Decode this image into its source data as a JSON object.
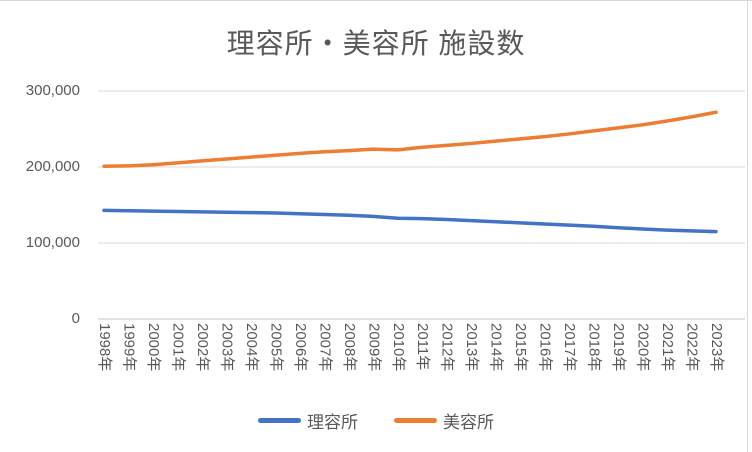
{
  "chart_data": {
    "type": "line",
    "title": "理容所・美容所 施設数",
    "categories": [
      "1998年",
      "1999年",
      "2000年",
      "2001年",
      "2002年",
      "2003年",
      "2004年",
      "2005年",
      "2006年",
      "2007年",
      "2008年",
      "2009年",
      "2010年",
      "2011年",
      "2012年",
      "2013年",
      "2014年",
      "2015年",
      "2016年",
      "2017年",
      "2018年",
      "2019年",
      "2020年",
      "2021年",
      "2022年",
      "2023年"
    ],
    "series": [
      {
        "name": "理容所",
        "color": "#4472C4",
        "values": [
          143000,
          142500,
          142000,
          141500,
          141000,
          140500,
          140000,
          139500,
          138500,
          137500,
          136500,
          135000,
          132500,
          132000,
          131000,
          129500,
          128000,
          126500,
          125000,
          123500,
          122000,
          120000,
          118500,
          117000,
          116000,
          115000
        ]
      },
      {
        "name": "美容所",
        "color": "#ED7D31",
        "values": [
          201000,
          201500,
          203000,
          205500,
          208000,
          210500,
          213000,
          215500,
          218000,
          220000,
          221500,
          223500,
          222500,
          226000,
          228500,
          231000,
          234000,
          237000,
          240000,
          243500,
          247500,
          251500,
          255500,
          260500,
          266000,
          272000
        ]
      }
    ],
    "xlabel": "",
    "ylabel": "",
    "ylim": [
      0,
      320000
    ],
    "y_ticks": [
      0,
      100000,
      200000,
      300000
    ],
    "y_tick_labels": [
      "0",
      "100,000",
      "200,000",
      "300,000"
    ],
    "grid": true,
    "legend_position": "bottom",
    "x_label_rotation": 90,
    "gridline_color": "#D9D9D9",
    "axis_text_color": "#595959",
    "title_color": "#595959"
  }
}
